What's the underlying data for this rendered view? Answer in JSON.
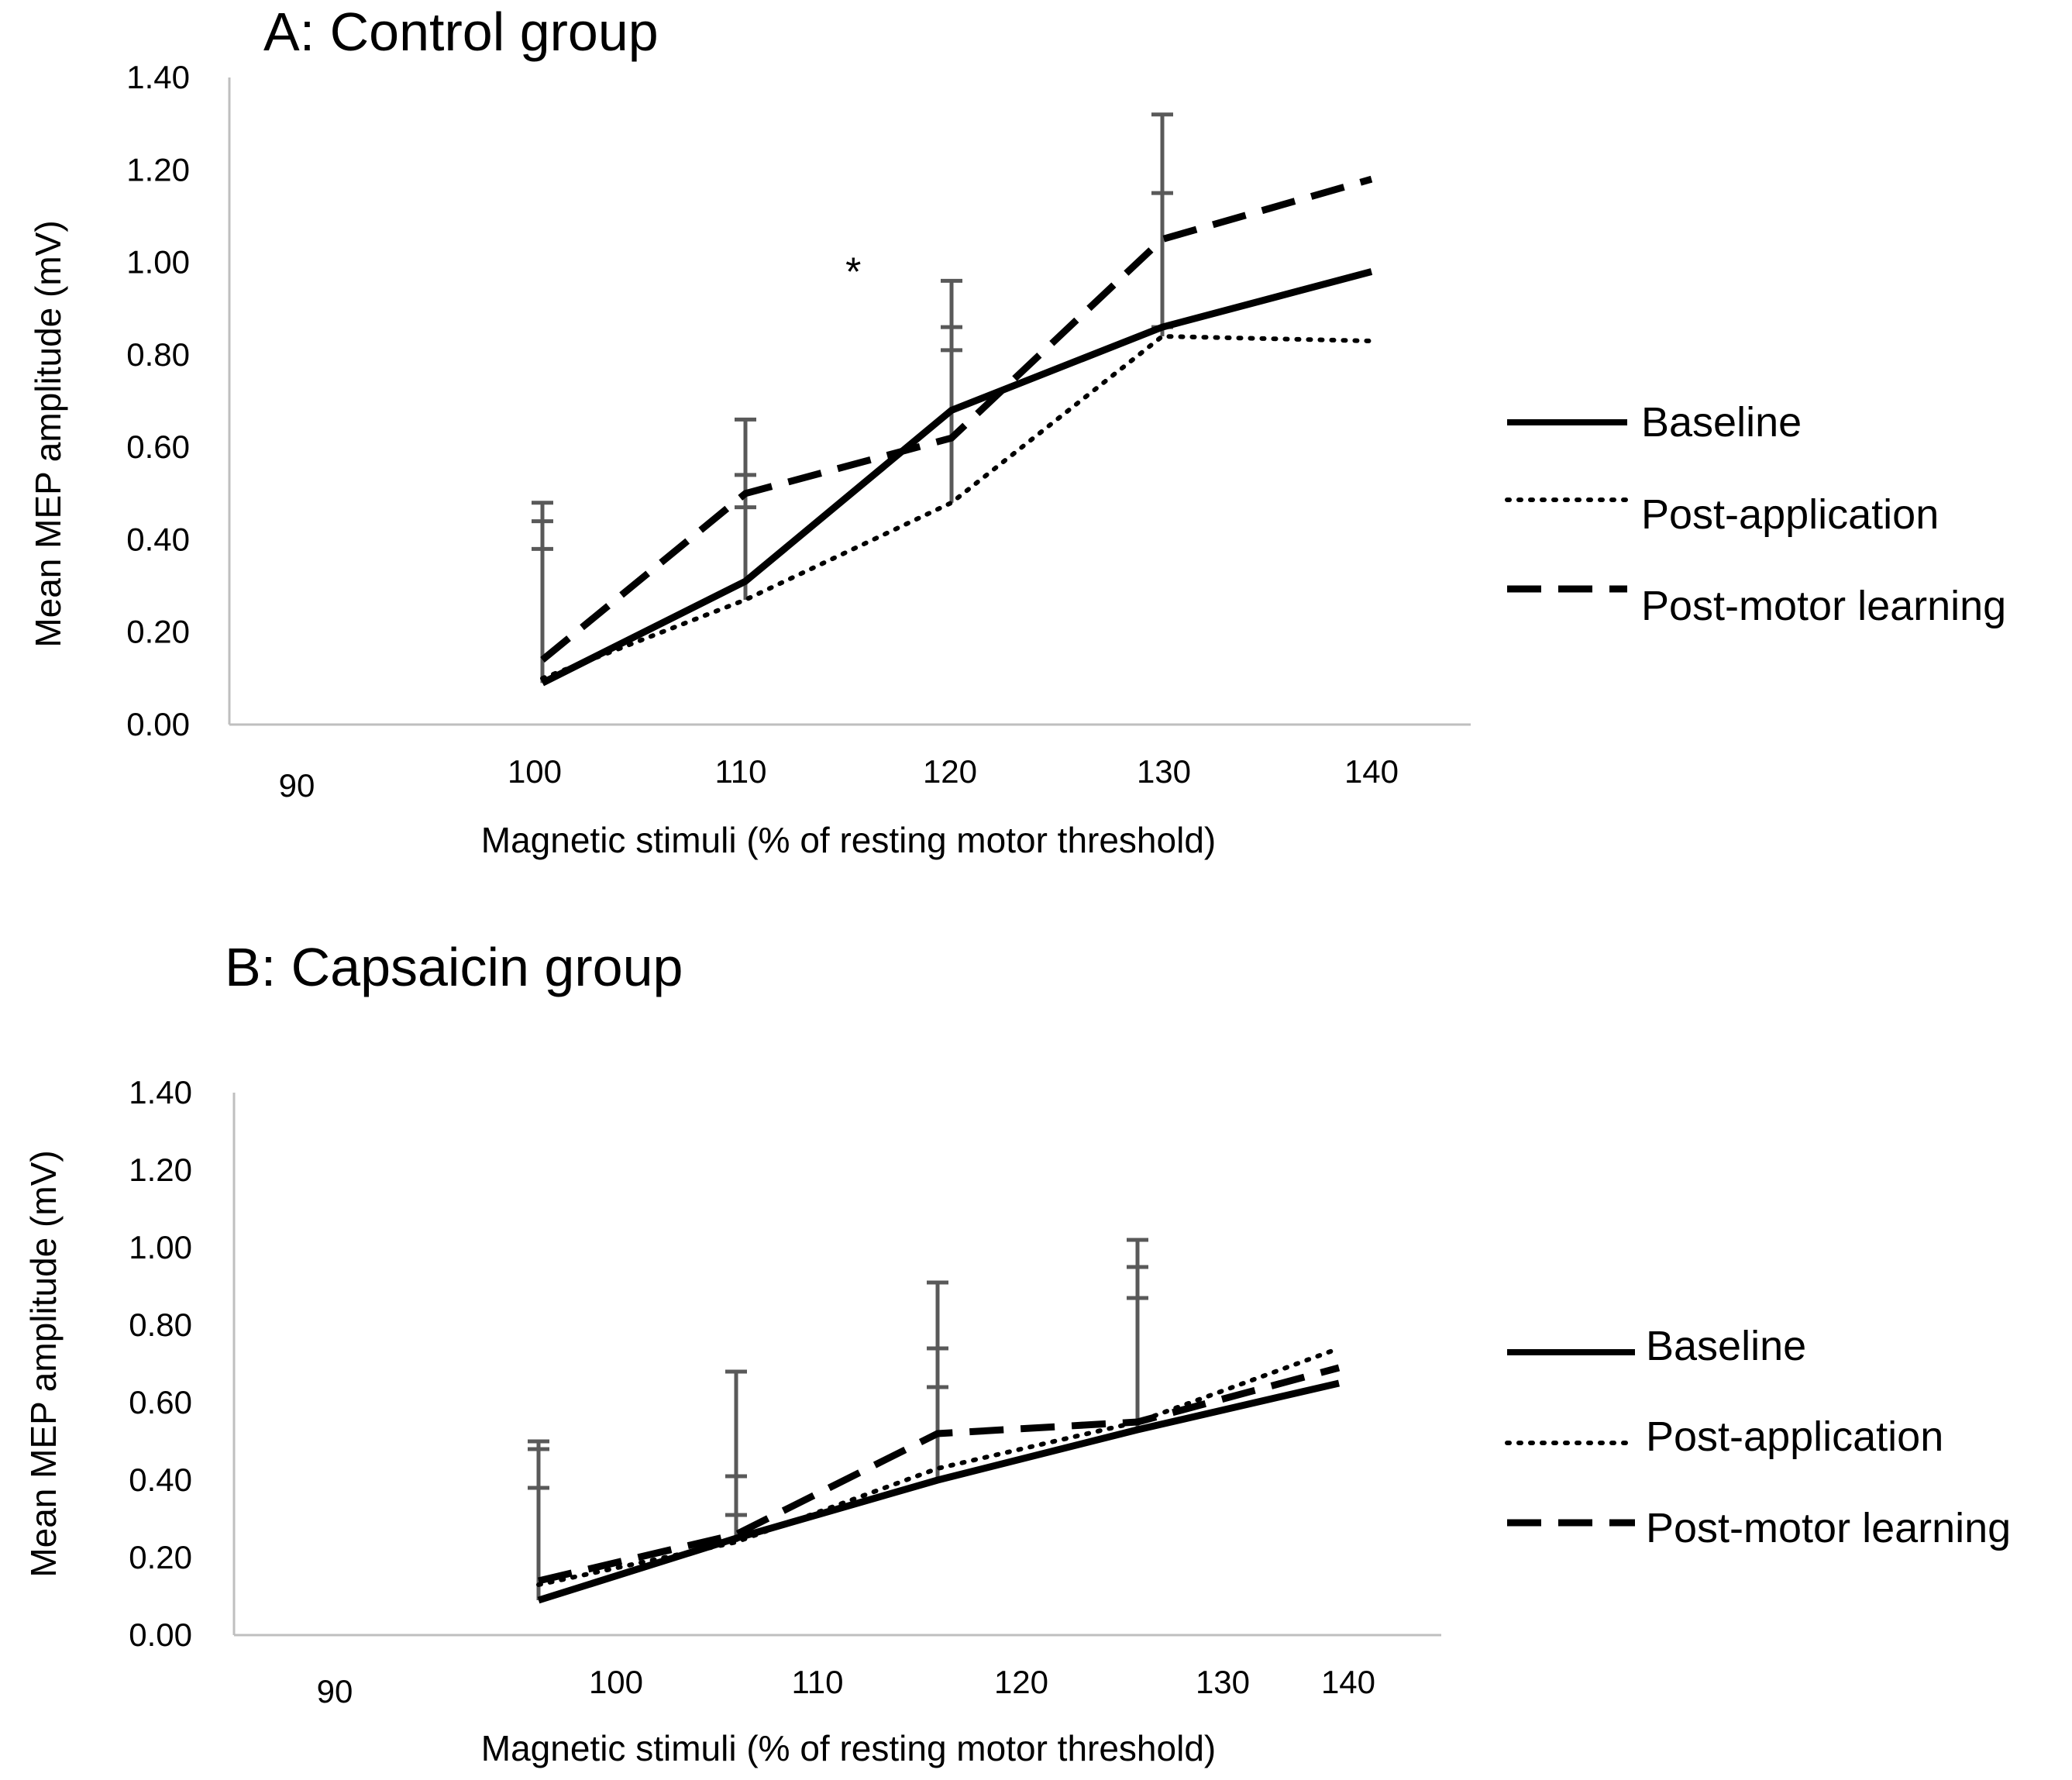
{
  "chart_data": [
    {
      "id": "A",
      "type": "line",
      "title": "A: Control group",
      "xlabel": "Magnetic stimuli  (% of resting  motor  threshold)",
      "ylabel": "Mean MEP amplitude (mV)",
      "ylim": [
        0,
        1.4
      ],
      "yticks": [
        "0.00",
        "0.20",
        "0.40",
        "0.60",
        "0.80",
        "1.00",
        "1.20",
        "1.40"
      ],
      "xticks": [
        "90",
        "100",
        "110",
        "120",
        "130",
        "140"
      ],
      "x": [
        100,
        110,
        120,
        130,
        140
      ],
      "series": [
        {
          "name": "Baseline",
          "style": "solid",
          "values": [
            0.09,
            0.31,
            0.68,
            0.86,
            0.98
          ]
        },
        {
          "name": "Post-application",
          "style": "dotted",
          "values": [
            0.1,
            0.27,
            0.48,
            0.84,
            0.83
          ]
        },
        {
          "name": "Post-motor learning",
          "style": "dashed",
          "values": [
            0.14,
            0.5,
            0.62,
            1.05,
            1.18
          ]
        }
      ],
      "error_tops": [
        [
          0.48,
          0.44,
          0.38
        ],
        [
          0.66,
          0.54,
          0.47
        ],
        [
          0.96,
          0.86,
          0.81
        ],
        [
          1.32,
          1.15,
          0.86
        ]
      ],
      "annotation": {
        "text": "*",
        "x": 115,
        "y": 1.0
      }
    },
    {
      "id": "B",
      "type": "line",
      "title": "B: Capsaicin group",
      "xlabel": "Magnetic stimuli  (% of resting  motor  threshold)",
      "ylabel": "Mean MEP amplitude (mV)",
      "ylim": [
        0,
        1.4
      ],
      "yticks": [
        "0.00",
        "0.20",
        "0.40",
        "0.60",
        "0.80",
        "1.00",
        "1.20",
        "1.40"
      ],
      "xticks": [
        "90",
        "100",
        "110",
        "120",
        "130",
        "140"
      ],
      "x": [
        100,
        110,
        120,
        130,
        140
      ],
      "series": [
        {
          "name": "Baseline",
          "style": "solid",
          "values": [
            0.09,
            0.25,
            0.4,
            0.53,
            0.65
          ]
        },
        {
          "name": "Post-application",
          "style": "dotted",
          "values": [
            0.13,
            0.24,
            0.43,
            0.55,
            0.74
          ]
        },
        {
          "name": "Post-motor learning",
          "style": "dashed",
          "values": [
            0.14,
            0.26,
            0.52,
            0.55,
            0.69
          ]
        }
      ],
      "error_tops": [
        [
          0.5,
          0.48,
          0.38
        ],
        [
          0.68,
          0.41,
          0.31
        ],
        [
          0.91,
          0.74,
          0.64
        ],
        [
          1.02,
          0.95,
          0.87
        ]
      ]
    }
  ]
}
